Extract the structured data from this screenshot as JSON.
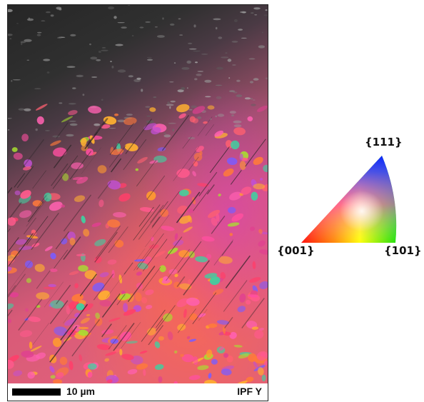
{
  "figure": {
    "scale_bar_label": "10 µm",
    "map_label": "IPF Y"
  },
  "legend": {
    "poles": {
      "top": "{111}",
      "left": "{001}",
      "right": "{101}"
    },
    "colors": {
      "001": "#ff0000",
      "101": "#00dd00",
      "111": "#0033ff"
    }
  }
}
